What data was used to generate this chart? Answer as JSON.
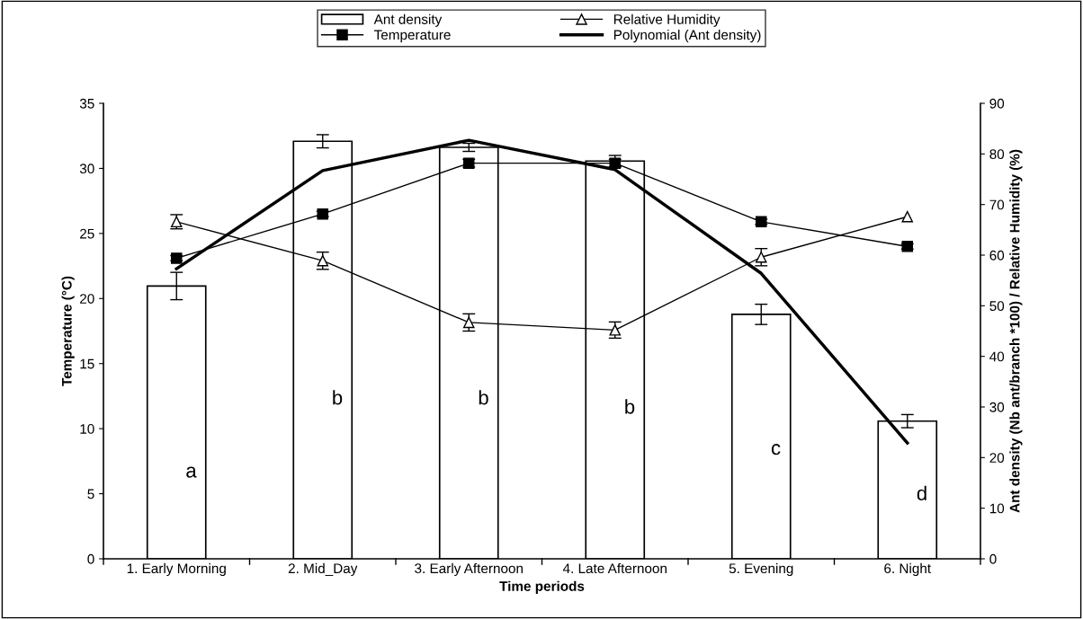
{
  "chart_data": {
    "type": "bar",
    "xlabel": "Time periods",
    "ylabel": "Temperature (°C)",
    "y2label": "Ant density (Nb ant/branch *100) / Relative Humidity (%)",
    "categories": [
      "1. Early Morning",
      "2. Mid_Day",
      "3. Early Afternoon",
      "4. Late Afternoon",
      "5. Evening",
      "6. Night"
    ],
    "series": [
      {
        "name": "Ant density",
        "axis": "y2",
        "color": "#ffffff",
        "values": [
          53.9,
          82.5,
          81.3,
          78.6,
          48.3,
          27.2
        ],
        "errors": [
          2.7,
          1.3,
          0.8,
          1.1,
          2.0,
          1.3
        ]
      },
      {
        "name": "Temperature",
        "type": "line",
        "axis": "y",
        "color": "#000000",
        "marker": "square",
        "values": [
          23.1,
          26.5,
          30.4,
          30.4,
          25.9,
          24.0
        ],
        "errors": [
          0.2,
          0.2,
          0.3,
          0.3,
          0.2,
          0.2
        ]
      },
      {
        "name": "Relative Humidity",
        "type": "line",
        "axis": "y2",
        "color": "#000000",
        "marker": "triangle",
        "values": [
          66.6,
          58.9,
          46.7,
          45.2,
          59.6,
          67.6
        ],
        "errors": [
          1.4,
          1.7,
          1.7,
          1.6,
          1.7,
          null
        ]
      },
      {
        "name": "Polynomial (Ant density)",
        "type": "line",
        "axis": "y2",
        "color": "#000000",
        "marker": "none",
        "values": [
          57.3,
          76.7,
          82.7,
          76.9,
          56.4,
          22.9
        ]
      }
    ],
    "ylim": [
      0,
      35
    ],
    "yticks": [
      0,
      5,
      10,
      15,
      20,
      25,
      30,
      35
    ],
    "y2lim": [
      0,
      90
    ],
    "y2ticks": [
      0,
      10,
      20,
      30,
      40,
      50,
      60,
      70,
      80,
      90
    ],
    "annotations": [
      "a",
      "b",
      "b",
      "b",
      "c",
      "d"
    ],
    "grid": false,
    "legend": "top"
  }
}
